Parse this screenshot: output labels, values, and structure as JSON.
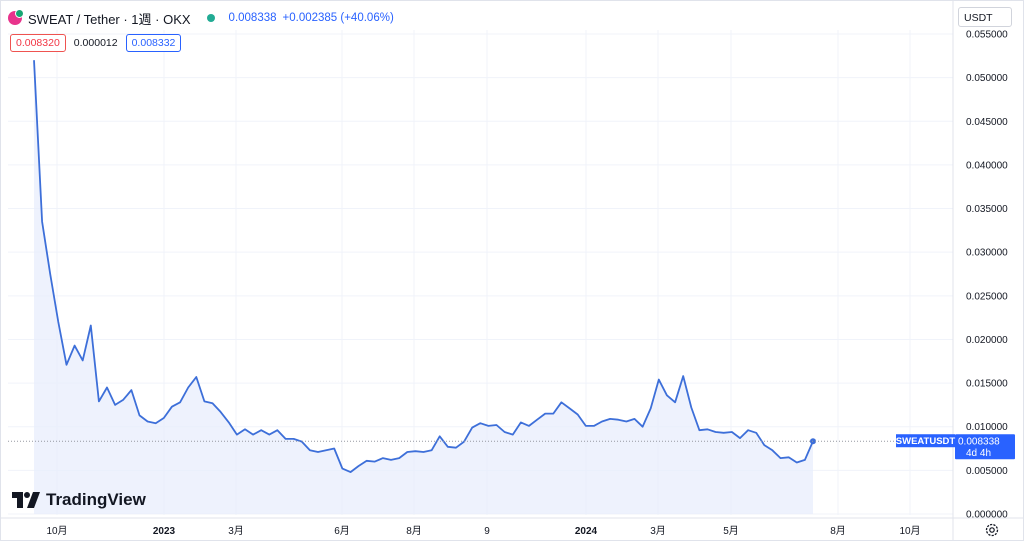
{
  "header": {
    "title": "SWEAT / Tether · 1週 · OKX",
    "last_price": "0.008338",
    "change": "+0.002385 (+40.06%)"
  },
  "badges": {
    "bid": "0.008320",
    "spread": "0.000012",
    "ask": "0.008332"
  },
  "currency_button": "USDT",
  "brand": "TradingView",
  "price_tag": {
    "symbol": "SWEATUSDT",
    "price": "0.008338",
    "countdown": "4d 4h"
  },
  "colors": {
    "line": "#3d6fd9",
    "fill": "#e8eefc",
    "tag": "#2962ff",
    "down": "#f23645"
  },
  "chart_data": {
    "type": "area",
    "y_ticks": [
      "0.000000",
      "0.005000",
      "0.010000",
      "0.015000",
      "0.020000",
      "0.025000",
      "0.030000",
      "0.035000",
      "0.040000",
      "0.045000",
      "0.050000",
      "0.055000"
    ],
    "x_ticks": [
      "10月",
      "2023",
      "3月",
      "6月",
      "8月",
      "9",
      "2024",
      "3月",
      "5月",
      "8月",
      "10月"
    ],
    "ylim": [
      0,
      0.055
    ],
    "grid": true,
    "series": [
      {
        "values": [
          0.052,
          0.0335,
          0.0275,
          0.022,
          0.0171,
          0.0193,
          0.0176,
          0.0216,
          0.0129,
          0.0145,
          0.0125,
          0.0131,
          0.0142,
          0.0113,
          0.0106,
          0.0104,
          0.011,
          0.0123,
          0.0128,
          0.0145,
          0.0157,
          0.0129,
          0.0127,
          0.0117,
          0.0105,
          0.0091,
          0.0097,
          0.0091,
          0.0096,
          0.0091,
          0.0096,
          0.0086,
          0.0086,
          0.0083,
          0.0073,
          0.0071,
          0.0073,
          0.0075,
          0.0052,
          0.0048,
          0.0055,
          0.0061,
          0.006,
          0.0064,
          0.0062,
          0.0064,
          0.0071,
          0.0072,
          0.0071,
          0.0073,
          0.0089,
          0.0077,
          0.0076,
          0.0083,
          0.0099,
          0.0104,
          0.0101,
          0.0102,
          0.0094,
          0.0091,
          0.0105,
          0.0101,
          0.0108,
          0.0115,
          0.0115,
          0.0128,
          0.0121,
          0.0114,
          0.0101,
          0.0101,
          0.0106,
          0.0109,
          0.0108,
          0.0106,
          0.0109,
          0.01,
          0.0121,
          0.0154,
          0.0136,
          0.0128,
          0.0158,
          0.0122,
          0.0096,
          0.0097,
          0.0094,
          0.0093,
          0.0094,
          0.0087,
          0.0096,
          0.0093,
          0.0079,
          0.0073,
          0.0064,
          0.0065,
          0.0059,
          0.0062,
          0.008338
        ]
      }
    ]
  }
}
